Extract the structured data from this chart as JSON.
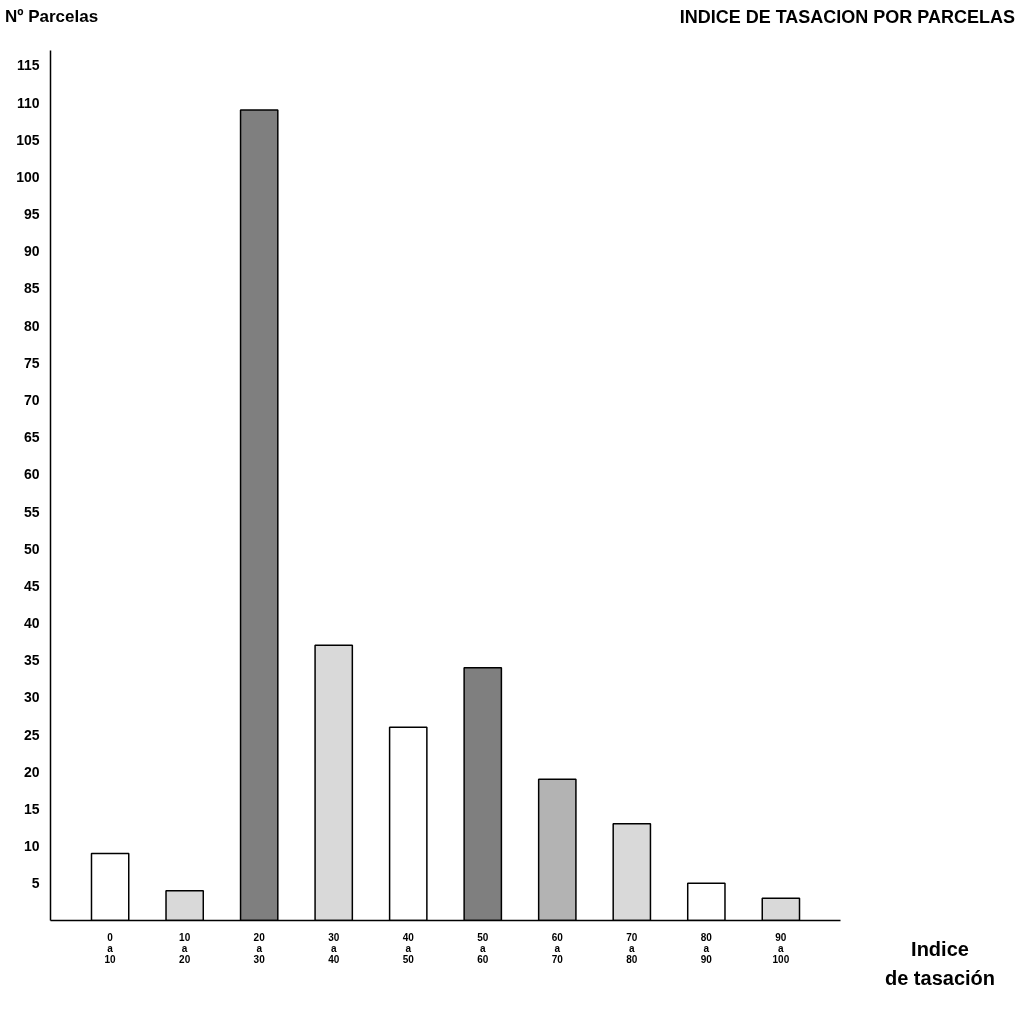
{
  "chart_data": {
    "type": "bar",
    "title": "INDICE DE TASACION POR PARCELAS",
    "ylabel": "Nº Parcelas",
    "xlabel": "Indice\nde tasación",
    "categories": [
      "0\na\n10",
      "10\na\n20",
      "20\na\n30",
      "30\na\n40",
      "40\na\n50",
      "50\na\n60",
      "60\na\n70",
      "70\na\n80",
      "80\na\n90",
      "90\na\n100"
    ],
    "values": [
      9,
      4,
      109,
      37,
      26,
      34,
      19,
      13,
      5,
      3
    ],
    "colors": [
      "#ffffff",
      "#d9d9d9",
      "#7f7f7f",
      "#d9d9d9",
      "#ffffff",
      "#7f7f7f",
      "#b3b3b3",
      "#d9d9d9",
      "#ffffff",
      "#d9d9d9"
    ],
    "ylim": [
      0,
      117
    ],
    "yticks": [
      5,
      10,
      15,
      20,
      25,
      30,
      35,
      40,
      45,
      50,
      55,
      60,
      65,
      70,
      75,
      80,
      85,
      90,
      95,
      100,
      105,
      110,
      115
    ],
    "grid": false
  }
}
